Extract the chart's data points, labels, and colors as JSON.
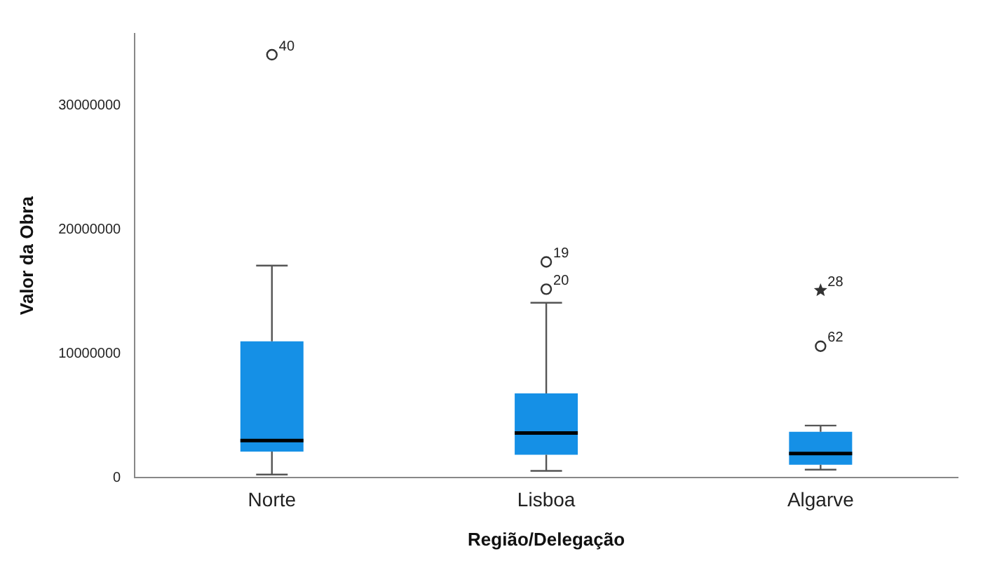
{
  "chart_data": {
    "type": "box",
    "xlabel": "Região/Delegação",
    "ylabel": "Valor da Obra",
    "categories": [
      "Norte",
      "Lisboa",
      "Algarve"
    ],
    "ylim": [
      0,
      35800000
    ],
    "yticks": [
      0,
      10000000,
      20000000,
      30000000
    ],
    "grid": false,
    "series": [
      {
        "color": "#1590e6",
        "boxes": [
          {
            "low": 250000,
            "q1": 2100000,
            "median": 3000000,
            "q3": 11000000,
            "high": 17100000,
            "outliers": [
              34100000
            ]
          },
          {
            "low": 550000,
            "q1": 1850000,
            "median": 3600000,
            "q3": 6800000,
            "high": 14100000,
            "outliers": [
              17400000,
              15200000
            ]
          },
          {
            "low": 650000,
            "q1": 1050000,
            "median": 1950000,
            "q3": 3700000,
            "high": 4200000,
            "outliers": [
              10600000
            ]
          }
        ]
      },
      {
        "type": "scatter",
        "x": [
          "Algarve"
        ],
        "values": [
          15100000
        ],
        "marker": "star",
        "color": "#333333"
      }
    ],
    "annotations": [
      "40",
      "19",
      "20",
      "62",
      "28"
    ]
  }
}
